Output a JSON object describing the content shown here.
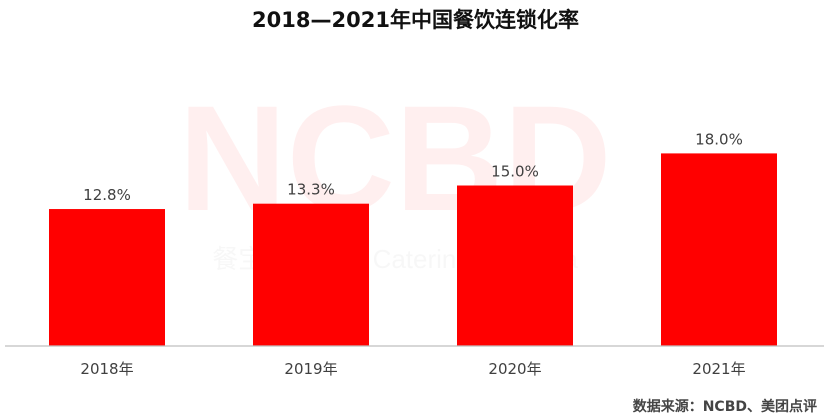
{
  "watermark": {
    "logo": "NCBD",
    "tagline": "餐宝典 China Catering Big Data"
  },
  "source": "数据来源：NCBD、美团点评",
  "chart_data": {
    "type": "bar",
    "title": "2018—2021年中国餐饮连锁化率",
    "categories": [
      "2018年",
      "2019年",
      "2020年",
      "2021年"
    ],
    "values": [
      12.8,
      13.3,
      15.0,
      18.0
    ],
    "labels": [
      "12.8%",
      "13.3%",
      "15.0%",
      "18.0%"
    ],
    "unit": "%",
    "ylim": [
      0,
      20
    ],
    "grid": false,
    "legend": "none",
    "bar_color": "#ff0000",
    "axis_color": "#bfbfbf"
  }
}
